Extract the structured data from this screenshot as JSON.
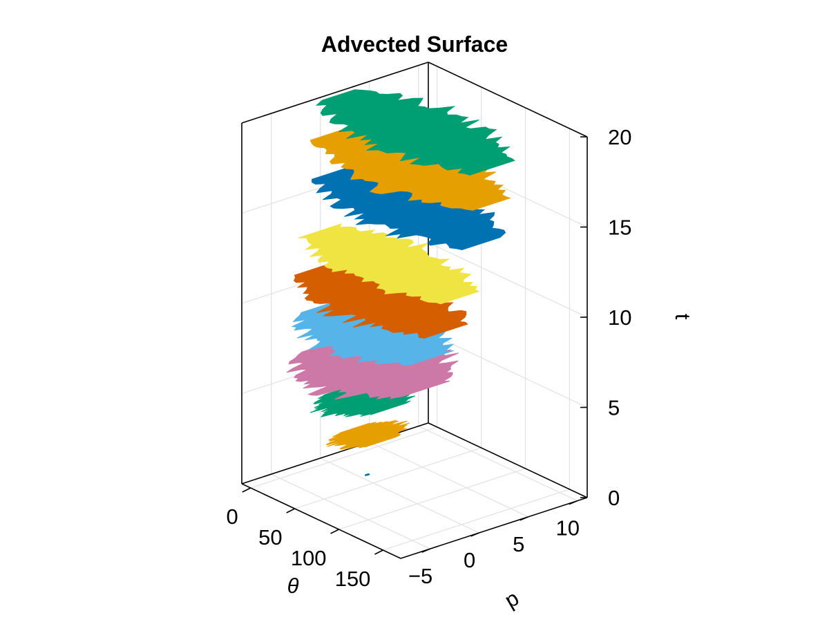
{
  "chart_data": {
    "type": "surface3d",
    "title": "Advected Surface",
    "axes": {
      "theta": {
        "label": "θ",
        "ticks": [
          "0",
          "50",
          "100",
          "150"
        ],
        "tick_values": [
          0,
          50,
          100,
          150
        ],
        "range": [
          -10,
          170
        ]
      },
      "p": {
        "label": "p",
        "ticks": [
          "−5",
          "0",
          "5",
          "10"
        ],
        "tick_values": [
          -5,
          0,
          5,
          10
        ],
        "range": [
          -8,
          11
        ]
      },
      "t": {
        "label": "t",
        "ticks": [
          "0",
          "5",
          "10",
          "15",
          "20"
        ],
        "tick_values": [
          0,
          5,
          10,
          15,
          20
        ],
        "range": [
          0,
          20
        ]
      }
    },
    "grid": true,
    "series": [
      {
        "t": 1,
        "theta_range": [
          60,
          62
        ],
        "p_range": [
          -1.8,
          -1.4
        ],
        "color": "#0072b2"
      },
      {
        "t": 3,
        "theta_range": [
          40,
          72
        ],
        "p_range": [
          -4.5,
          2.5
        ],
        "color": "#e69f00"
      },
      {
        "t": 5,
        "theta_range": [
          30,
          80
        ],
        "p_range": [
          -5.5,
          3.0
        ],
        "color": "#009e73"
      },
      {
        "t": 7,
        "theta_range": [
          10,
          120
        ],
        "p_range": [
          -7.5,
          5.0
        ],
        "color": "#cc79a7"
      },
      {
        "t": 9,
        "theta_range": [
          5,
          130
        ],
        "p_range": [
          -6.5,
          3.5
        ],
        "color": "#56b4e9"
      },
      {
        "t": 11,
        "theta_range": [
          0,
          150
        ],
        "p_range": [
          -6.0,
          3.0
        ],
        "color": "#d55e00"
      },
      {
        "t": 13,
        "theta_range": [
          0,
          160
        ],
        "p_range": [
          -5.0,
          3.0
        ],
        "color": "#f0e442"
      },
      {
        "t": 16,
        "theta_range": [
          0,
          170
        ],
        "p_range": [
          -4.0,
          5.0
        ],
        "color": "#0072b2"
      },
      {
        "t": 18,
        "theta_range": [
          -5,
          170
        ],
        "p_range": [
          -3.5,
          5.5
        ],
        "color": "#e69f00"
      },
      {
        "t": 20,
        "theta_range": [
          -5,
          170
        ],
        "p_range": [
          -3.0,
          6.0
        ],
        "color": "#009e73"
      }
    ]
  }
}
